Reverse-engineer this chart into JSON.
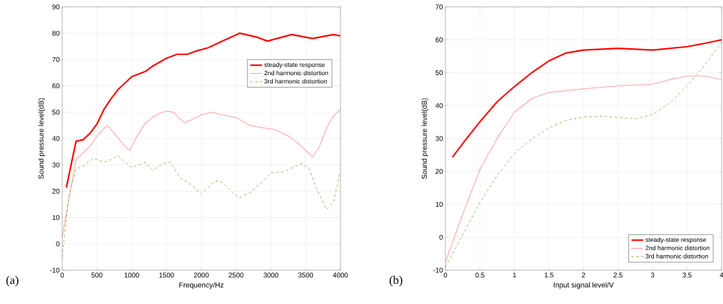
{
  "chart_data": [
    {
      "type": "line",
      "xlabel": "Frequency/Hz",
      "ylabel": "Sound pressure level(dB)",
      "xlim": [
        0,
        4000
      ],
      "ylim": [
        -10,
        90
      ],
      "xticks": [
        0,
        500,
        1000,
        1500,
        2000,
        2500,
        3000,
        3500,
        4000
      ],
      "yticks": [
        -10,
        0,
        10,
        20,
        30,
        40,
        50,
        60,
        70,
        80,
        90
      ],
      "grid": true,
      "legend": "top right",
      "annotations": [
        "(a)"
      ],
      "series": [
        {
          "name": "steady-state response",
          "color": "#ff0000",
          "line_style": "solid",
          "x": [
            60,
            200,
            300,
            400,
            500,
            600,
            700,
            800,
            900,
            1000,
            1200,
            1300,
            1500,
            1650,
            1800,
            1900,
            2100,
            2300,
            2550,
            2800,
            2950,
            3300,
            3600,
            3900,
            4000
          ],
          "values": [
            21.4,
            39,
            39.5,
            42,
            45.5,
            51,
            55,
            58.5,
            61,
            63.5,
            65.5,
            67.5,
            70.5,
            72,
            72,
            73,
            74.5,
            77,
            80,
            78.5,
            77,
            79.5,
            78,
            79.5,
            79
          ]
        },
        {
          "name": "2nd harmonic distortion",
          "color": "#ff4d4d",
          "line_style": "dotted",
          "x": [
            0,
            60,
            100,
            200,
            300,
            400,
            500,
            650,
            750,
            900,
            970,
            1100,
            1200,
            1350,
            1500,
            1600,
            1750,
            1850,
            2000,
            2150,
            2300,
            2500,
            2700,
            2900,
            3050,
            3250,
            3400,
            3600,
            3700,
            3800,
            3900,
            4000
          ],
          "values": [
            2.4,
            11.5,
            17.5,
            32,
            34.5,
            37,
            41,
            45,
            42,
            37,
            35.5,
            42,
            46,
            49,
            50.5,
            50,
            46,
            47,
            49,
            50,
            49,
            48,
            45,
            44,
            43.5,
            41,
            38,
            33,
            37,
            44,
            48.5,
            51
          ]
        },
        {
          "name": "3rd harmonic distortion",
          "color": "#77ac30",
          "line_style": "dashdot",
          "x": [
            0,
            60,
            100,
            200,
            300,
            450,
            600,
            700,
            800,
            900,
            1000,
            1100,
            1200,
            1300,
            1450,
            1550,
            1700,
            1850,
            2000,
            2100,
            2200,
            2300,
            2450,
            2550,
            2700,
            2900,
            3000,
            3200,
            3350,
            3450,
            3550,
            3650,
            3800,
            3900,
            4000
          ],
          "values": [
            -5,
            9.5,
            18.5,
            28.5,
            29.5,
            32.5,
            31,
            32,
            33.5,
            31,
            29,
            30,
            31,
            28,
            30.5,
            31,
            25,
            22.5,
            19,
            21.5,
            24,
            23.5,
            19.5,
            17.5,
            19.5,
            24,
            27,
            27.5,
            29.5,
            30.5,
            28.5,
            21.5,
            13,
            16,
            27.5
          ]
        }
      ]
    },
    {
      "type": "line",
      "xlabel": "Input signal level/V",
      "ylabel": "Sound pressure level(dB)",
      "xlim": [
        0,
        4
      ],
      "ylim": [
        -10,
        70
      ],
      "xticks": [
        0,
        0.5,
        1,
        1.5,
        2,
        2.5,
        3,
        3.5,
        4
      ],
      "yticks": [
        -10,
        0,
        10,
        20,
        30,
        40,
        50,
        60,
        70
      ],
      "grid": true,
      "legend": "bottom right",
      "annotations": [
        "(b)"
      ],
      "series": [
        {
          "name": "steady-state response",
          "color": "#ff0000",
          "line_style": "solid",
          "x": [
            0.1,
            0.3,
            0.5,
            0.75,
            1,
            1.25,
            1.5,
            1.75,
            2,
            2.5,
            3,
            3.5,
            3.75,
            4
          ],
          "values": [
            24.3,
            29.8,
            35.1,
            41.2,
            45.8,
            50,
            53.6,
            56,
            56.9,
            57.4,
            56.9,
            57.9,
            58.9,
            60
          ]
        },
        {
          "name": "2nd harmonic distortion",
          "color": "#ff4d4d",
          "line_style": "dotted",
          "x": [
            0,
            0.25,
            0.5,
            0.75,
            1,
            1.25,
            1.5,
            2,
            2.5,
            3,
            3.25,
            3.5,
            3.75,
            4
          ],
          "values": [
            -7.5,
            7,
            20.6,
            30.1,
            38,
            42.2,
            44,
            45.1,
            46,
            46.5,
            47.9,
            49,
            49,
            47.9
          ]
        },
        {
          "name": "3rd harmonic distortion",
          "color": "#77ac30",
          "line_style": "dashdot",
          "x": [
            0,
            0.25,
            0.5,
            0.75,
            1,
            1.25,
            1.5,
            1.75,
            2,
            2.25,
            2.5,
            2.75,
            3,
            3.25,
            3.5,
            3.75,
            4
          ],
          "values": [
            -9,
            0.7,
            10.6,
            18.8,
            25.5,
            29.8,
            33.3,
            35.5,
            36.5,
            36.8,
            36.4,
            36,
            37.3,
            40.8,
            46,
            52.2,
            59.3
          ]
        }
      ]
    }
  ]
}
